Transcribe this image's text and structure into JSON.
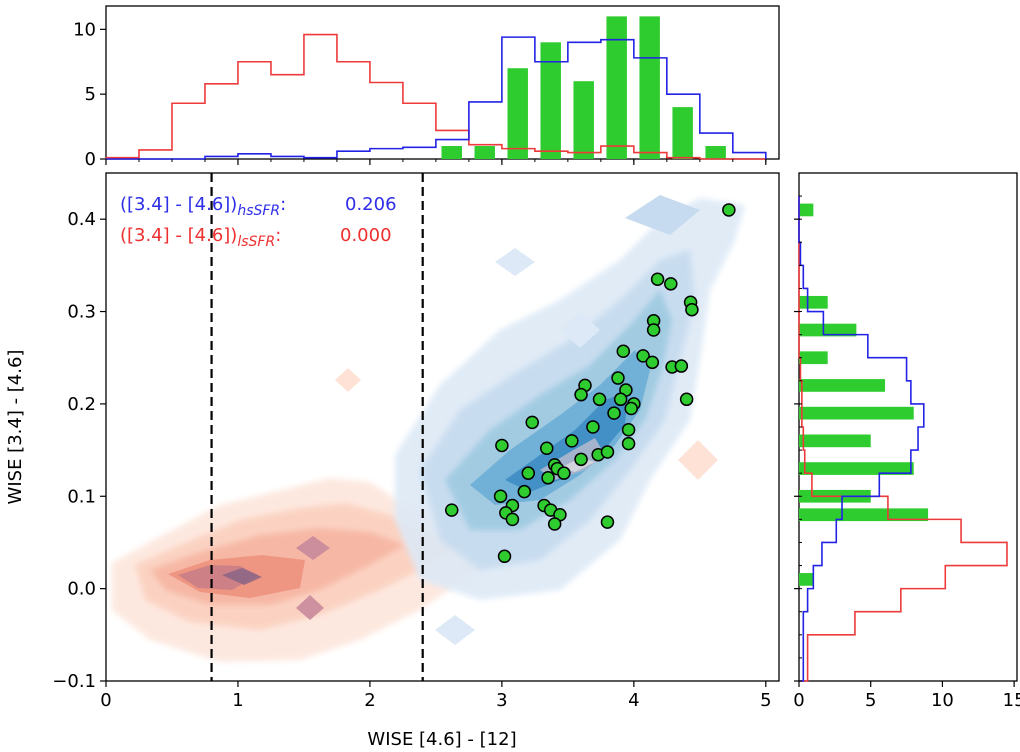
{
  "chart_data": {
    "type": "scatter",
    "xlabel": "WISE [4.6] - [12]",
    "ylabel": "WISE [3.4] - [4.6]",
    "xlim": [
      0,
      5.1
    ],
    "ylim": [
      -0.1,
      0.45
    ],
    "xticks": [
      "0",
      "1",
      "2",
      "3",
      "4",
      "5"
    ],
    "yticks": [
      "−0.1",
      "0.0",
      "0.1",
      "0.2",
      "0.3",
      "0.4"
    ],
    "top_hist": {
      "ylim": [
        0,
        11.8
      ],
      "yticks": [
        "0",
        "5",
        "10"
      ],
      "bin_edges": [
        0,
        0.25,
        0.5,
        0.75,
        1.0,
        1.25,
        1.5,
        1.75,
        2.0,
        2.25,
        2.5,
        2.75,
        3.0,
        3.25,
        3.5,
        3.75,
        4.0,
        4.25,
        4.5,
        4.75,
        5.0
      ],
      "red_counts": [
        0.1,
        0.7,
        4.3,
        5.8,
        7.5,
        6.5,
        9.6,
        7.5,
        5.9,
        4.3,
        2.2,
        1.1,
        0.8,
        0.6,
        0.5,
        1.0,
        0.5,
        0.1,
        0,
        0
      ],
      "blue_counts": [
        0,
        0,
        0,
        0.2,
        0.4,
        0.2,
        0.1,
        0.6,
        0.8,
        0.9,
        1.5,
        4.4,
        9.4,
        7.5,
        9.0,
        9.2,
        7.8,
        5.0,
        2.0,
        0.5
      ],
      "green_centers": [
        2.62,
        2.87,
        3.12,
        3.37,
        3.62,
        3.87,
        4.12,
        4.37,
        4.62
      ],
      "green_counts": [
        1,
        1,
        7,
        9,
        6,
        11,
        11,
        4,
        1
      ]
    },
    "right_hist": {
      "xlim": [
        0,
        15.2
      ],
      "xticks": [
        "0",
        "5",
        "10",
        "15"
      ],
      "bin_edges": [
        -0.1,
        -0.075,
        -0.05,
        -0.025,
        0.0,
        0.025,
        0.05,
        0.075,
        0.1,
        0.125,
        0.15,
        0.175,
        0.2,
        0.225,
        0.25,
        0.275,
        0.3,
        0.325,
        0.35,
        0.375,
        0.4,
        0.425
      ],
      "red_counts": [
        0.6,
        0.6,
        3.9,
        7.1,
        10.2,
        14.5,
        11.3,
        6.2,
        0.9,
        0.4,
        0.3,
        0.2,
        0.2,
        0.1,
        0,
        0,
        0,
        0,
        0,
        0,
        0
      ],
      "blue_counts": [
        0.3,
        0.3,
        0.3,
        0.6,
        1.0,
        1.6,
        2.6,
        3.0,
        5.6,
        7.8,
        8.3,
        8.7,
        7.8,
        7.5,
        4.8,
        1.7,
        0.6,
        0.3,
        0.1,
        0,
        0
      ],
      "green_centers": [
        0.01,
        0.08,
        0.1,
        0.13,
        0.16,
        0.19,
        0.22,
        0.25,
        0.28,
        0.31,
        0.41
      ],
      "green_counts": [
        1,
        9,
        5,
        8,
        5,
        8,
        6,
        2,
        4,
        2,
        1
      ]
    },
    "green_points": [
      [
        4.72,
        0.41
      ],
      [
        4.18,
        0.335
      ],
      [
        4.28,
        0.33
      ],
      [
        4.43,
        0.31
      ],
      [
        4.44,
        0.302
      ],
      [
        4.15,
        0.29
      ],
      [
        4.15,
        0.28
      ],
      [
        3.92,
        0.257
      ],
      [
        4.07,
        0.252
      ],
      [
        4.14,
        0.245
      ],
      [
        4.29,
        0.24
      ],
      [
        4.36,
        0.241
      ],
      [
        3.63,
        0.22
      ],
      [
        3.88,
        0.228
      ],
      [
        3.94,
        0.215
      ],
      [
        3.6,
        0.21
      ],
      [
        3.74,
        0.205
      ],
      [
        3.9,
        0.205
      ],
      [
        4.0,
        0.2
      ],
      [
        4.4,
        0.205
      ],
      [
        3.85,
        0.19
      ],
      [
        3.98,
        0.195
      ],
      [
        3.69,
        0.175
      ],
      [
        3.96,
        0.172
      ],
      [
        3.23,
        0.18
      ],
      [
        3.53,
        0.16
      ],
      [
        3.96,
        0.157
      ],
      [
        3.0,
        0.155
      ],
      [
        3.34,
        0.152
      ],
      [
        3.73,
        0.145
      ],
      [
        3.6,
        0.14
      ],
      [
        3.8,
        0.148
      ],
      [
        3.4,
        0.134
      ],
      [
        3.42,
        0.13
      ],
      [
        3.47,
        0.125
      ],
      [
        3.35,
        0.12
      ],
      [
        3.2,
        0.125
      ],
      [
        3.17,
        0.105
      ],
      [
        2.99,
        0.1
      ],
      [
        3.08,
        0.09
      ],
      [
        3.32,
        0.09
      ],
      [
        3.37,
        0.085
      ],
      [
        3.44,
        0.08
      ],
      [
        3.03,
        0.082
      ],
      [
        3.08,
        0.075
      ],
      [
        3.4,
        0.07
      ],
      [
        3.8,
        0.072
      ],
      [
        2.62,
        0.085
      ],
      [
        3.02,
        0.035
      ]
    ],
    "dashed_lines_x": [
      0.8,
      2.4
    ],
    "annotations": [
      {
        "main": "([3.4] - [4.6])",
        "sub": "hsSFR",
        "sep": ":",
        "value": "0.206",
        "color": "#2e2ee8"
      },
      {
        "main": "([3.4] - [4.6])",
        "sub": "lsSFR",
        "sep": ":",
        "value": "0.000",
        "color": "#ee3030"
      }
    ],
    "colors": {
      "red": "#ee3a3a",
      "blue": "#2323e6",
      "green": "#2ecc2e"
    }
  }
}
